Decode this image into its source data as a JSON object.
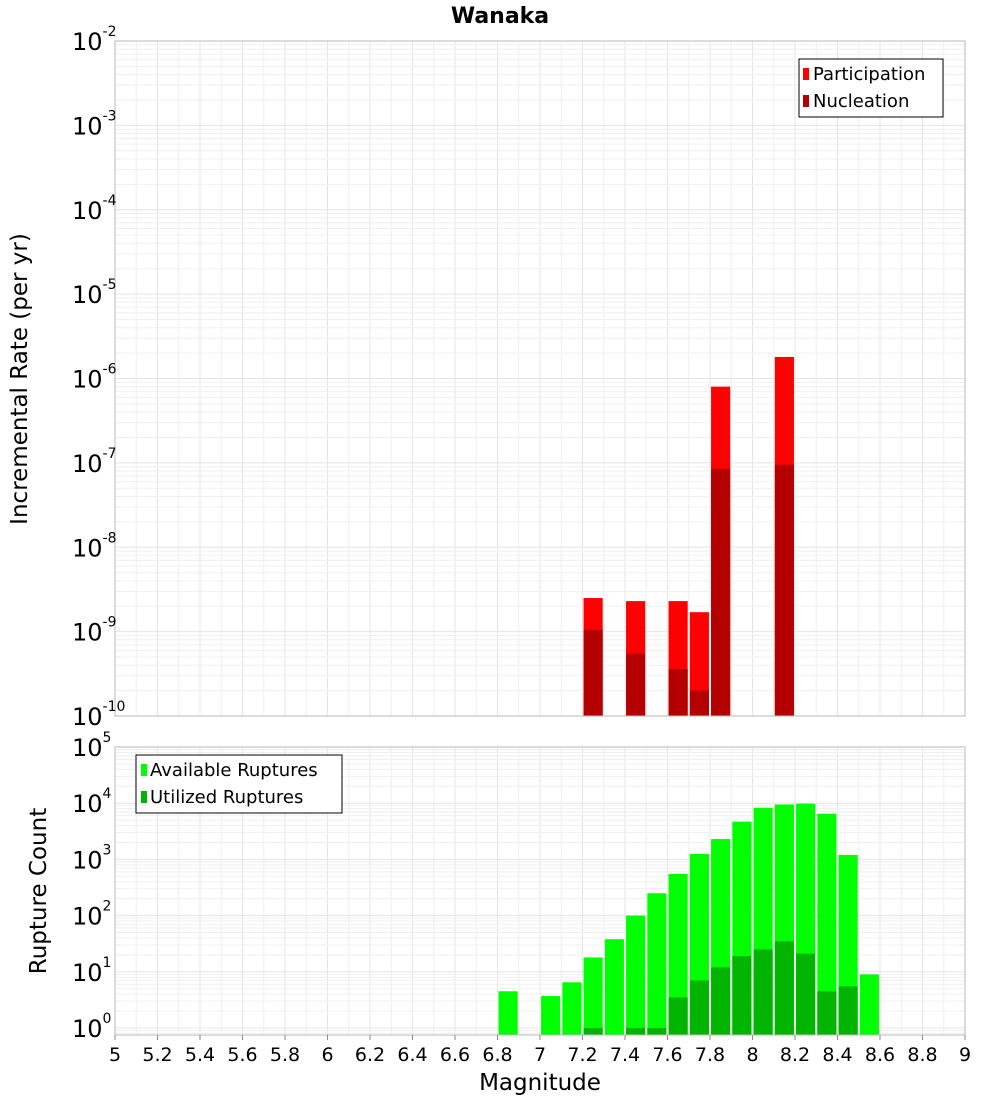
{
  "title": "Wanaka",
  "chart_data": [
    {
      "type": "bar",
      "ylabel": "Incremental Rate (per yr)",
      "yscale": "log",
      "ylim": [
        1e-10,
        0.01
      ],
      "xlim": [
        5,
        9
      ],
      "bar_width": 0.09,
      "legend": {
        "position": "top-right"
      },
      "series": [
        {
          "name": "Participation",
          "color": "#ff0000",
          "points": [
            {
              "x": 7.25,
              "y": 2.5e-09
            },
            {
              "x": 7.45,
              "y": 2.3e-09
            },
            {
              "x": 7.65,
              "y": 2.3e-09
            },
            {
              "x": 7.75,
              "y": 1.7e-09
            },
            {
              "x": 7.85,
              "y": 8e-07
            },
            {
              "x": 8.15,
              "y": 1.8e-06
            }
          ]
        },
        {
          "name": "Nucleation",
          "color": "#b40000",
          "points": [
            {
              "x": 7.25,
              "y": 1.05e-09
            },
            {
              "x": 7.45,
              "y": 5.5e-10
            },
            {
              "x": 7.65,
              "y": 3.6e-10
            },
            {
              "x": 7.75,
              "y": 2e-10
            },
            {
              "x": 7.85,
              "y": 8.5e-08
            },
            {
              "x": 8.15,
              "y": 9.5e-08
            }
          ]
        }
      ]
    },
    {
      "type": "bar",
      "ylabel": "Rupture Count",
      "xlabel": "Magnitude",
      "yscale": "log",
      "ylim": [
        0.75,
        100000.0
      ],
      "xlim": [
        5,
        9
      ],
      "bar_width": 0.09,
      "x_ticks": [
        "5",
        "5.2",
        "5.4",
        "5.6",
        "5.8",
        "6",
        "6.2",
        "6.4",
        "6.6",
        "6.8",
        "7",
        "7.2",
        "7.4",
        "7.6",
        "7.8",
        "8",
        "8.2",
        "8.4",
        "8.6",
        "8.8",
        "9"
      ],
      "legend": {
        "position": "top-left"
      },
      "series": [
        {
          "name": "Available Ruptures",
          "color": "#00ff00",
          "points": [
            {
              "x": 6.85,
              "y": 4.5
            },
            {
              "x": 7.05,
              "y": 3.7
            },
            {
              "x": 7.15,
              "y": 6.5
            },
            {
              "x": 7.25,
              "y": 18
            },
            {
              "x": 7.35,
              "y": 38
            },
            {
              "x": 7.45,
              "y": 100
            },
            {
              "x": 7.55,
              "y": 250
            },
            {
              "x": 7.65,
              "y": 550
            },
            {
              "x": 7.75,
              "y": 1250
            },
            {
              "x": 7.85,
              "y": 2300
            },
            {
              "x": 7.95,
              "y": 4700
            },
            {
              "x": 8.05,
              "y": 8300
            },
            {
              "x": 8.15,
              "y": 9500
            },
            {
              "x": 8.25,
              "y": 9800
            },
            {
              "x": 8.35,
              "y": 6500
            },
            {
              "x": 8.45,
              "y": 1200
            },
            {
              "x": 8.55,
              "y": 9
            }
          ]
        },
        {
          "name": "Utilized Ruptures",
          "color": "#00b400",
          "points": [
            {
              "x": 7.25,
              "y": 1
            },
            {
              "x": 7.45,
              "y": 1
            },
            {
              "x": 7.55,
              "y": 1
            },
            {
              "x": 7.65,
              "y": 3.5
            },
            {
              "x": 7.75,
              "y": 7
            },
            {
              "x": 7.85,
              "y": 12
            },
            {
              "x": 7.95,
              "y": 19
            },
            {
              "x": 8.05,
              "y": 25
            },
            {
              "x": 8.15,
              "y": 35
            },
            {
              "x": 8.25,
              "y": 21
            },
            {
              "x": 8.35,
              "y": 4.5
            },
            {
              "x": 8.45,
              "y": 5.5
            }
          ]
        }
      ]
    }
  ]
}
